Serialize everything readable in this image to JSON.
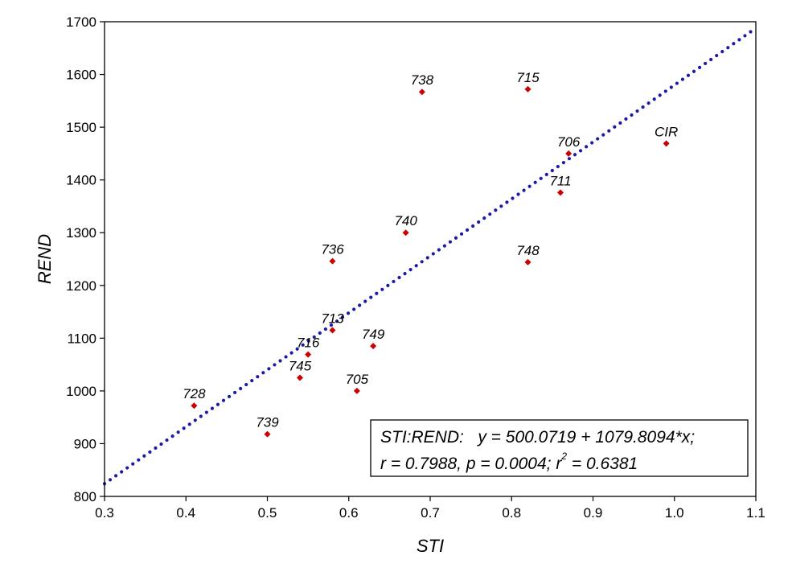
{
  "chart_data": {
    "type": "scatter",
    "title": "",
    "xlabel": "STI",
    "ylabel": "REND",
    "xlim": [
      0.3,
      1.1
    ],
    "ylim": [
      800,
      1700
    ],
    "xticks": [
      0.3,
      0.4,
      0.5,
      0.6,
      0.7,
      0.8,
      0.9,
      1.0,
      1.1
    ],
    "xtick_labels": [
      "0.3",
      "0.4",
      "0.5",
      "0.6",
      "0.7",
      "0.8",
      "0.9",
      "1.0",
      "1.1"
    ],
    "yticks": [
      800,
      900,
      1000,
      1100,
      1200,
      1300,
      1400,
      1500,
      1600,
      1700
    ],
    "ytick_labels": [
      "800",
      "900",
      "1000",
      "1100",
      "1200",
      "1300",
      "1400",
      "1500",
      "1600",
      "1700"
    ],
    "grid": false,
    "marker_color": "#cc0000",
    "fit_line_color": "#1a1aa6",
    "points": [
      {
        "label": "738",
        "x": 0.69,
        "y": 1567
      },
      {
        "label": "715",
        "x": 0.82,
        "y": 1572
      },
      {
        "label": "706",
        "x": 0.87,
        "y": 1450
      },
      {
        "label": "CIR",
        "x": 0.99,
        "y": 1469
      },
      {
        "label": "711",
        "x": 0.86,
        "y": 1376
      },
      {
        "label": "740",
        "x": 0.67,
        "y": 1300
      },
      {
        "label": "736",
        "x": 0.58,
        "y": 1246
      },
      {
        "label": "748",
        "x": 0.82,
        "y": 1244
      },
      {
        "label": "713",
        "x": 0.58,
        "y": 1115
      },
      {
        "label": "749",
        "x": 0.63,
        "y": 1085
      },
      {
        "label": "716",
        "x": 0.55,
        "y": 1069
      },
      {
        "label": "745",
        "x": 0.54,
        "y": 1025
      },
      {
        "label": "705",
        "x": 0.61,
        "y": 1000
      },
      {
        "label": "728",
        "x": 0.41,
        "y": 972
      },
      {
        "label": "739",
        "x": 0.5,
        "y": 918
      }
    ],
    "fit": {
      "intercept": 500.0719,
      "slope": 1079.8094
    },
    "annotation": {
      "line1": "STI:REND:   y = 500.0719 + 1079.8094*x;",
      "line2": "r = 0.7988, p = 0.0004; r",
      "line2_sup": "2",
      "line2_tail": " = 0.6381"
    }
  }
}
